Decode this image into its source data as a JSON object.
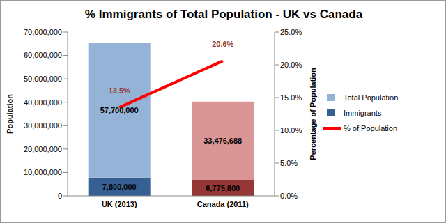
{
  "chart_data": {
    "type": "bar",
    "title": "% Immigrants  of Total Population - UK vs Canada",
    "categories": [
      "UK (2013)",
      "Canada (2011)"
    ],
    "series": [
      {
        "name": "Total Population",
        "color": "#95b3d7",
        "colors": [
          "#95b3d7",
          "#d99694"
        ],
        "values": [
          57700000,
          33476688
        ],
        "value_labels": [
          "57,700,000",
          "33,476,688"
        ]
      },
      {
        "name": "Immigrants",
        "color": "#376092",
        "colors": [
          "#376092",
          "#953735"
        ],
        "values": [
          7800000,
          6775800
        ],
        "value_labels": [
          "7,800,000",
          "6,775,800"
        ]
      },
      {
        "name": "% of Population",
        "type": "line",
        "axis": "y2",
        "color": "#ff0000",
        "values": [
          13.5,
          20.6
        ],
        "value_labels": [
          "13.5%",
          "20.6%"
        ]
      }
    ],
    "ylabel": "Population",
    "y2label": "Percentage of Population",
    "ylim": [
      0,
      70000000
    ],
    "yticks": [
      0,
      {
        "value": 10000000,
        "label": "10,000,000"
      },
      {
        "value": 20000000,
        "label": "20,000,000"
      },
      {
        "value": 30000000,
        "label": "30,000,000"
      },
      {
        "value": 40000000,
        "label": "40,000,000"
      },
      {
        "value": 50000000,
        "label": "50,000,000"
      },
      {
        "value": 60000000,
        "label": "60,000,000"
      },
      {
        "value": 70000000,
        "label": "70,000,000"
      }
    ],
    "y2lim": [
      0,
      25
    ],
    "y2ticks": [
      {
        "value": 0,
        "label": "0.0%"
      },
      {
        "value": 5,
        "label": "5.0%"
      },
      {
        "value": 10,
        "label": "10.0%"
      },
      {
        "value": 15,
        "label": "15.0%"
      },
      {
        "value": 20,
        "label": "20.0%"
      },
      {
        "value": 25,
        "label": "25.0%"
      }
    ],
    "stacked": true,
    "data_labels": true,
    "grid": false,
    "legend": "right"
  }
}
